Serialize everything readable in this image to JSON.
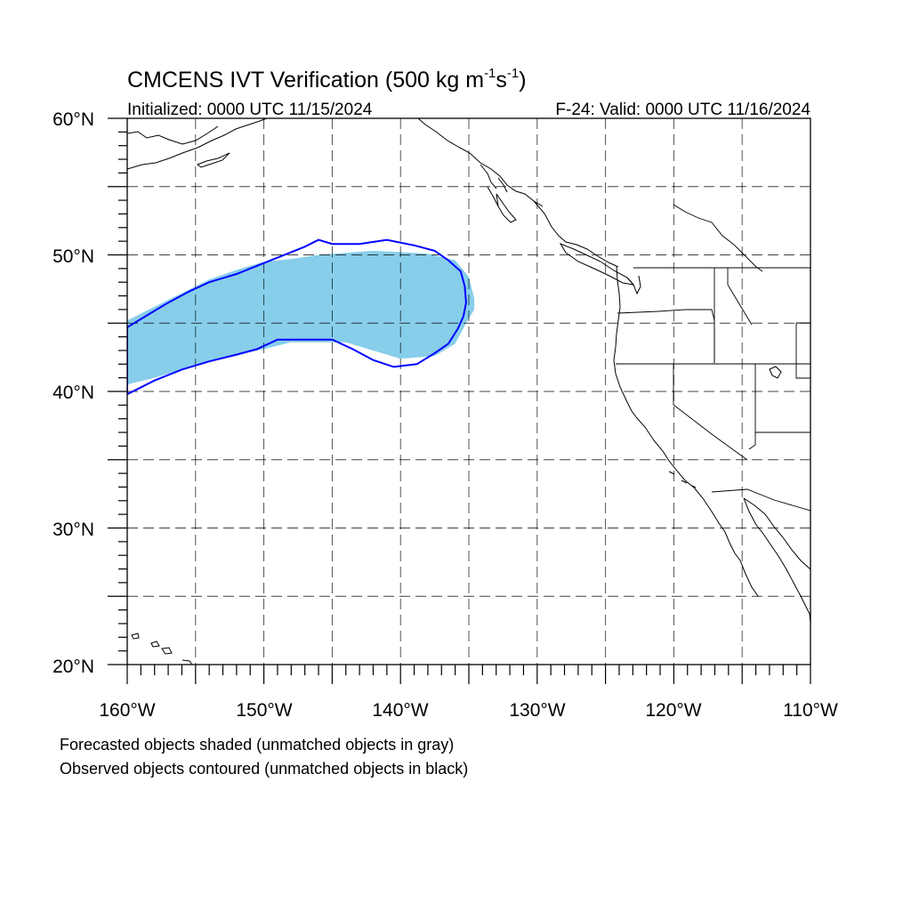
{
  "title": {
    "main": "CMCENS IVT Verification (500 kg m",
    "sup1": "-1",
    "mid": "s",
    "sup2": "-1",
    "end": ")"
  },
  "subtitle_left": "Initialized: 0000 UTC 11/15/2024",
  "subtitle_right": "F-24: Valid: 0000 UTC 11/16/2024",
  "lat_labels": [
    "60°N",
    "50°N",
    "40°N",
    "30°N",
    "20°N"
  ],
  "lon_labels": [
    "160°W",
    "150°W",
    "140°W",
    "130°W",
    "120°W",
    "110°W"
  ],
  "footnotes": [
    "Forecasted objects shaded (unmatched objects in gray)",
    "Observed objects contoured (unmatched objects in black)"
  ],
  "colors": {
    "forecast_fill": "#87CEEB",
    "observed_contour": "#0000FF",
    "coastline": "#000000",
    "grid": "#000000"
  },
  "chart_data": {
    "type": "map",
    "projection": "cylindrical-equidistant",
    "lon_range": [
      -160,
      -110
    ],
    "lat_range": [
      20,
      60
    ],
    "grid_spacing_deg": 5,
    "forecast_object": {
      "upper": [
        [
          -160,
          45.2
        ],
        [
          -158,
          46.2
        ],
        [
          -156,
          47.2
        ],
        [
          -154,
          48.2
        ],
        [
          -152,
          48.9
        ],
        [
          -150,
          49.5
        ],
        [
          -148,
          49.7
        ],
        [
          -146,
          50.0
        ],
        [
          -142,
          50.3
        ],
        [
          -138,
          50.1
        ],
        [
          -136,
          49.6
        ],
        [
          -135,
          48.4
        ],
        [
          -134.6,
          46.8
        ]
      ],
      "lower": [
        [
          -134.6,
          46.0
        ],
        [
          -135.2,
          45.0
        ],
        [
          -136,
          43.5
        ],
        [
          -137.5,
          42.6
        ],
        [
          -140,
          42.4
        ],
        [
          -142,
          43.0
        ],
        [
          -144,
          43.6
        ],
        [
          -148,
          43.6
        ],
        [
          -150,
          43.1
        ],
        [
          -154,
          42.2
        ],
        [
          -156,
          41.6
        ],
        [
          -158,
          41.0
        ],
        [
          -160,
          40.5
        ]
      ]
    },
    "observed_object": {
      "upper": [
        [
          -160,
          44.7
        ],
        [
          -159,
          45.3
        ],
        [
          -158,
          45.9
        ],
        [
          -157,
          46.5
        ],
        [
          -155.5,
          47.3
        ],
        [
          -154,
          48.0
        ],
        [
          -152,
          48.6
        ],
        [
          -150.5,
          49.2
        ],
        [
          -149,
          49.8
        ],
        [
          -147,
          50.6
        ],
        [
          -146,
          51.1
        ],
        [
          -145,
          50.8
        ],
        [
          -143,
          50.8
        ],
        [
          -141,
          51.1
        ],
        [
          -139,
          50.7
        ],
        [
          -137.5,
          50.3
        ],
        [
          -136.5,
          49.6
        ],
        [
          -135.6,
          48.8
        ],
        [
          -135.3,
          47.7
        ],
        [
          -135.2,
          46.5
        ]
      ],
      "lower": [
        [
          -135.4,
          45.5
        ],
        [
          -135.8,
          44.6
        ],
        [
          -136.5,
          43.5
        ],
        [
          -137.5,
          42.8
        ],
        [
          -138.8,
          42.0
        ],
        [
          -140.5,
          41.8
        ],
        [
          -142,
          42.3
        ],
        [
          -143.5,
          43.1
        ],
        [
          -145,
          43.8
        ],
        [
          -147,
          43.8
        ],
        [
          -149,
          43.8
        ],
        [
          -150.5,
          43.1
        ],
        [
          -152,
          42.7
        ],
        [
          -154,
          42.2
        ],
        [
          -156,
          41.6
        ],
        [
          -158,
          40.8
        ],
        [
          -160,
          39.8
        ]
      ]
    }
  }
}
